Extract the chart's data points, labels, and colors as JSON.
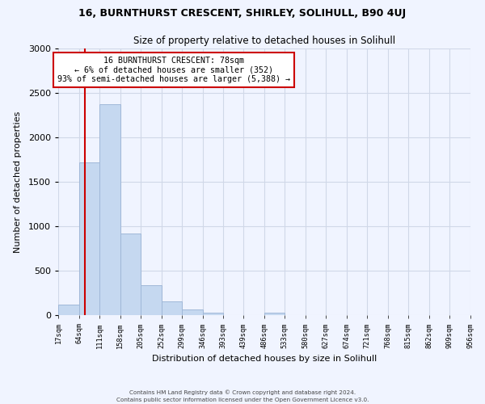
{
  "title": "16, BURNTHURST CRESCENT, SHIRLEY, SOLIHULL, B90 4UJ",
  "subtitle": "Size of property relative to detached houses in Solihull",
  "xlabel": "Distribution of detached houses by size in Solihull",
  "ylabel": "Number of detached properties",
  "bin_edges": [
    17,
    64,
    111,
    158,
    205,
    252,
    299,
    346,
    393,
    439,
    486,
    533,
    580,
    627,
    674,
    721,
    768,
    815,
    862,
    909,
    956
  ],
  "bin_heights": [
    120,
    1720,
    2370,
    920,
    340,
    155,
    65,
    30,
    0,
    0,
    30,
    0,
    0,
    0,
    0,
    0,
    0,
    0,
    0,
    0
  ],
  "bar_color": "#c5d8f0",
  "bar_edge_color": "#a0b8d8",
  "vline_x": 78,
  "vline_color": "#cc0000",
  "annotation_title": "16 BURNTHURST CRESCENT: 78sqm",
  "annotation_line1": "← 6% of detached houses are smaller (352)",
  "annotation_line2": "93% of semi-detached houses are larger (5,388) →",
  "annotation_box_color": "#ffffff",
  "annotation_box_edge": "#cc0000",
  "ylim": [
    0,
    3000
  ],
  "tick_labels": [
    "17sqm",
    "64sqm",
    "111sqm",
    "158sqm",
    "205sqm",
    "252sqm",
    "299sqm",
    "346sqm",
    "393sqm",
    "439sqm",
    "486sqm",
    "533sqm",
    "580sqm",
    "627sqm",
    "674sqm",
    "721sqm",
    "768sqm",
    "815sqm",
    "862sqm",
    "909sqm",
    "956sqm"
  ],
  "footer_line1": "Contains HM Land Registry data © Crown copyright and database right 2024.",
  "footer_line2": "Contains public sector information licensed under the Open Government Licence v3.0.",
  "bg_color": "#f0f4ff",
  "grid_color": "#d0d8e8"
}
